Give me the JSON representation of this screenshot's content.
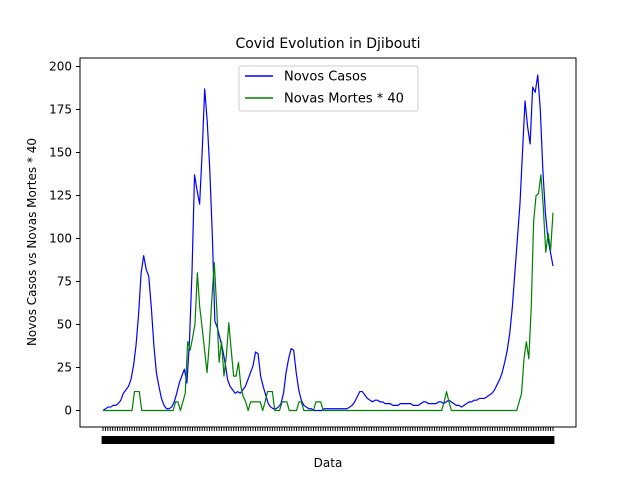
{
  "chart_data": {
    "type": "line",
    "title": "Covid Evolution in Djibouti",
    "xlabel": "Data",
    "ylabel": "Novos Casos vs Novas Mortes * 40",
    "ylim": [
      -10,
      207
    ],
    "yticks": [
      0,
      25,
      50,
      75,
      100,
      125,
      150,
      175,
      200
    ],
    "grid": false,
    "legend_position": "upper center",
    "x_tick_labels_overlapping": true,
    "series": [
      {
        "name": "Novos Casos",
        "color": "#0000ff",
        "values": [
          0,
          1,
          2,
          2,
          3,
          3,
          4,
          6,
          10,
          12,
          14,
          18,
          26,
          38,
          56,
          80,
          90,
          82,
          78,
          60,
          38,
          22,
          14,
          7,
          3,
          1,
          1,
          2,
          5,
          10,
          16,
          20,
          24,
          16,
          40,
          80,
          137,
          128,
          120,
          150,
          187,
          168,
          140,
          102,
          52,
          48,
          42,
          36,
          28,
          18,
          14,
          12,
          10,
          11,
          10,
          12,
          14,
          18,
          22,
          26,
          34,
          33,
          20,
          14,
          9,
          4,
          2,
          1,
          1,
          2,
          4,
          10,
          22,
          30,
          36,
          35,
          22,
          12,
          6,
          3,
          2,
          1,
          1,
          0,
          0,
          0,
          0,
          1,
          1,
          1,
          1,
          1,
          1,
          1,
          1,
          1,
          1,
          2,
          3,
          5,
          8,
          11,
          11,
          9,
          7,
          6,
          5,
          6,
          6,
          5,
          5,
          4,
          4,
          4,
          3,
          3,
          3,
          4,
          4,
          4,
          4,
          4,
          3,
          3,
          3,
          4,
          5,
          5,
          4,
          4,
          4,
          4,
          5,
          5,
          4,
          5,
          6,
          5,
          4,
          3,
          3,
          2,
          3,
          4,
          5,
          5,
          6,
          6,
          7,
          7,
          7,
          8,
          9,
          10,
          12,
          15,
          18,
          22,
          28,
          35,
          45,
          60,
          80,
          100,
          120,
          150,
          180,
          165,
          155,
          188,
          185,
          195,
          175,
          140,
          115,
          100,
          92,
          84
        ]
      },
      {
        "name": "Novas Mortes * 40",
        "color": "#008000",
        "values": [
          0,
          0,
          0,
          0,
          0,
          0,
          0,
          0,
          0,
          0,
          0,
          0,
          0,
          11,
          11,
          11,
          0,
          0,
          0,
          0,
          0,
          0,
          0,
          0,
          0,
          0,
          0,
          0,
          0,
          0,
          5,
          5,
          0,
          5,
          10,
          40,
          35,
          42,
          50,
          80,
          60,
          48,
          35,
          22,
          40,
          65,
          86,
          60,
          28,
          40,
          20,
          32,
          51,
          35,
          20,
          20,
          28,
          14,
          8,
          5,
          0,
          5,
          5,
          5,
          5,
          5,
          0,
          5,
          11,
          11,
          11,
          0,
          0,
          0,
          5,
          5,
          5,
          0,
          0,
          0,
          0,
          5,
          5,
          0,
          0,
          0,
          0,
          0,
          5,
          5,
          5,
          0,
          0,
          0,
          0,
          0,
          0,
          0,
          0,
          0,
          0,
          0,
          0,
          0,
          0,
          0,
          0,
          0,
          0,
          0,
          0,
          0,
          0,
          0,
          0,
          0,
          0,
          0,
          0,
          0,
          0,
          0,
          0,
          0,
          0,
          0,
          0,
          0,
          0,
          0,
          0,
          0,
          0,
          0,
          0,
          0,
          0,
          0,
          0,
          0,
          0,
          5,
          11,
          5,
          0,
          0,
          0,
          0,
          0,
          0,
          0,
          0,
          0,
          0,
          0,
          0,
          0,
          0,
          0,
          0,
          0,
          0,
          0,
          0,
          0,
          0,
          0,
          0,
          0,
          0,
          0,
          0,
          5,
          10,
          30,
          40,
          30,
          60,
          110,
          125,
          126,
          137,
          118,
          92,
          103,
          93,
          115
        ]
      }
    ]
  }
}
